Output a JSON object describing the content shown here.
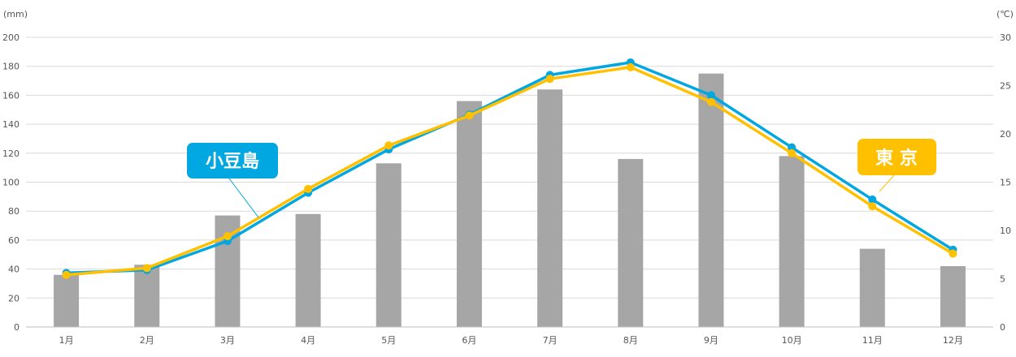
{
  "chart_data": {
    "type": "bar",
    "categories": [
      "1月",
      "2月",
      "3月",
      "4月",
      "5月",
      "6月",
      "7月",
      "8月",
      "9月",
      "10月",
      "11月",
      "12月"
    ],
    "y_left": {
      "unit": "(mm)",
      "ylim": [
        0,
        200
      ],
      "ticks": [
        0,
        20,
        40,
        60,
        80,
        100,
        120,
        140,
        160,
        180,
        200
      ]
    },
    "y_right": {
      "unit": "(℃)",
      "ylim": [
        0,
        30
      ],
      "ticks": [
        0,
        5,
        10,
        15,
        20,
        25,
        30
      ]
    },
    "grid": true,
    "series": [
      {
        "type": "bar",
        "axis": "left",
        "color": "#a6a6a6",
        "values": [
          36,
          43,
          77,
          78,
          113,
          156,
          164,
          116,
          175,
          118,
          54,
          42
        ]
      },
      {
        "type": "line",
        "axis": "right",
        "name": "小豆島",
        "color": "#00a7e0",
        "values": [
          5.6,
          5.9,
          8.9,
          13.9,
          18.4,
          22.0,
          26.1,
          27.4,
          24.0,
          18.6,
          13.2,
          8.0
        ]
      },
      {
        "type": "line",
        "axis": "right",
        "name": "東 京",
        "color": "#ffc000",
        "values": [
          5.4,
          6.1,
          9.4,
          14.3,
          18.8,
          21.9,
          25.7,
          26.9,
          23.3,
          18.0,
          12.5,
          7.6
        ]
      }
    ]
  }
}
